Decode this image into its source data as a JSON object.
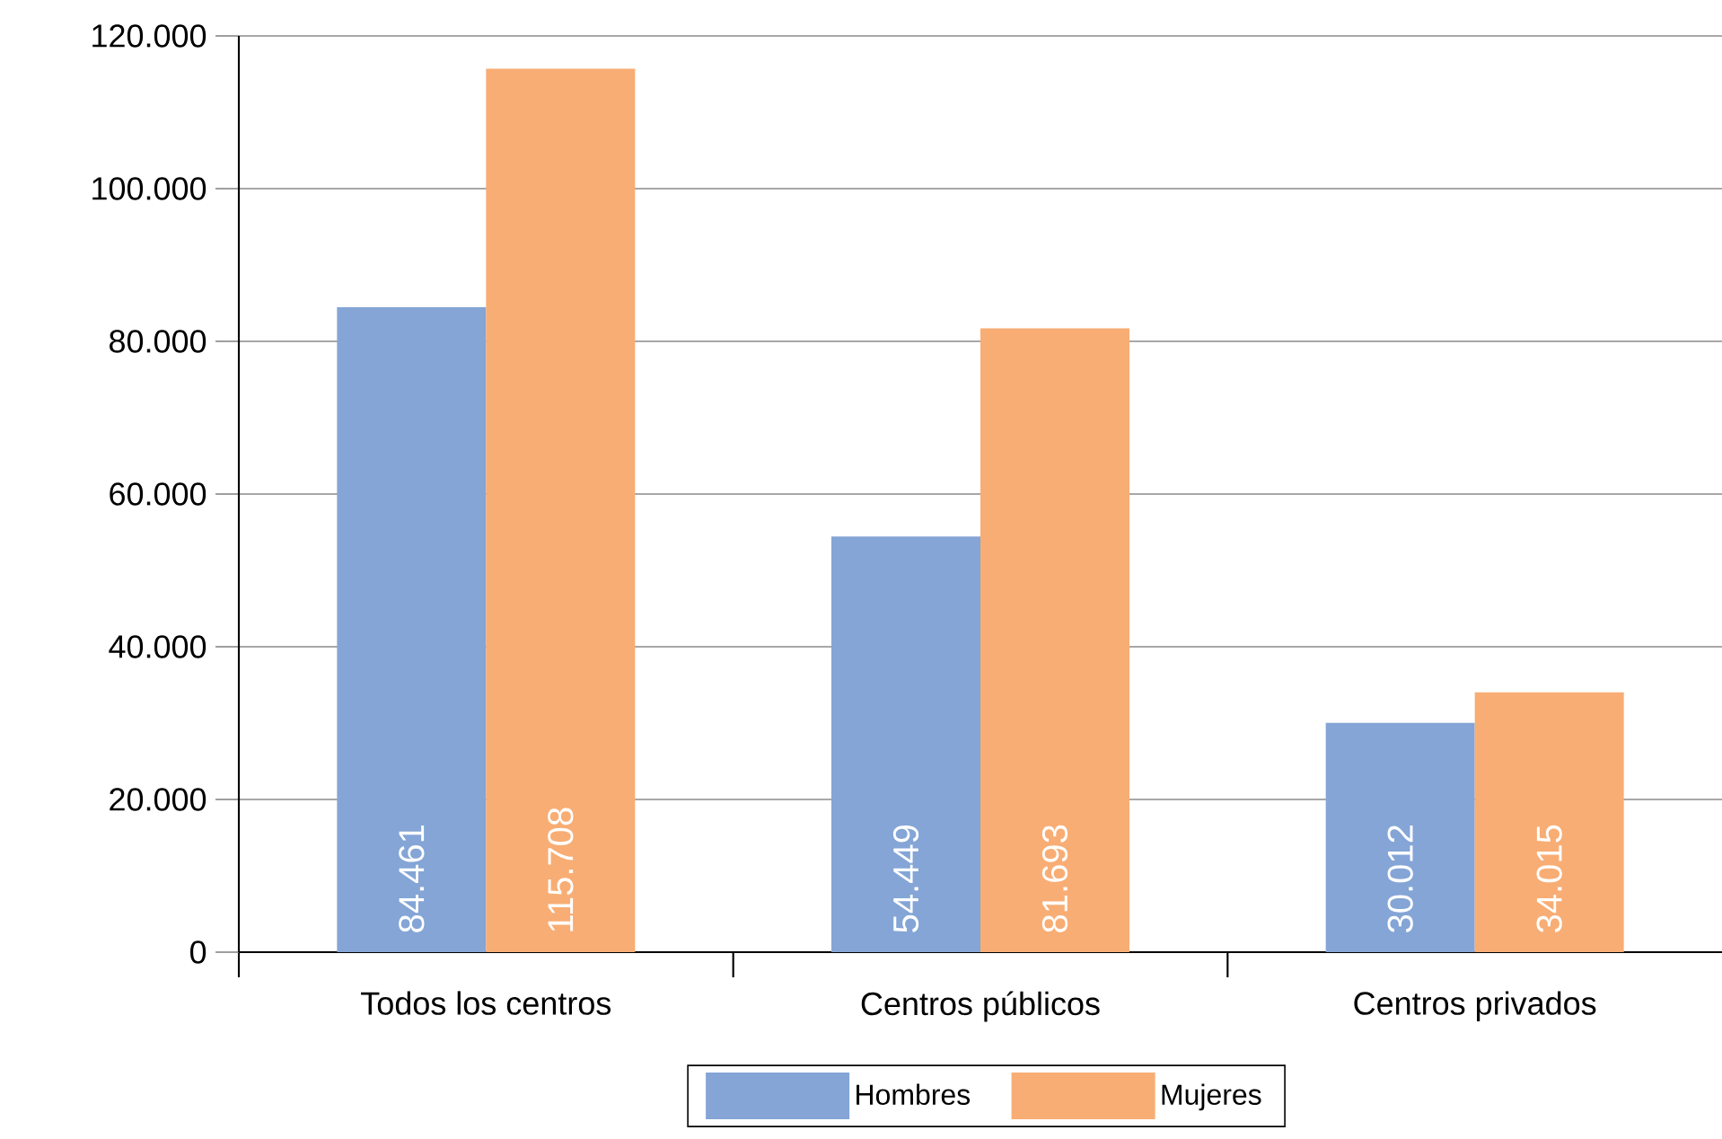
{
  "chart_data": {
    "type": "bar",
    "categories": [
      "Todos los centros",
      "Centros públicos",
      "Centros privados"
    ],
    "series": [
      {
        "name": "Hombres",
        "color": "#84a5d6",
        "values": [
          84461,
          54449,
          30012
        ],
        "value_labels": [
          "84.461",
          "54.449",
          "30.012"
        ]
      },
      {
        "name": "Mujeres",
        "color": "#f8ad74",
        "values": [
          115708,
          81693,
          34015
        ],
        "value_labels": [
          "115.708",
          "81.693",
          "34.015"
        ]
      }
    ],
    "ylim": [
      0,
      120000
    ],
    "yticks": [
      {
        "value": 0,
        "label": "0"
      },
      {
        "value": 20000,
        "label": "20.000"
      },
      {
        "value": 40000,
        "label": "40.000"
      },
      {
        "value": 60000,
        "label": "60.000"
      },
      {
        "value": 80000,
        "label": "80.000"
      },
      {
        "value": 100000,
        "label": "100.000"
      },
      {
        "value": 120000,
        "label": "120.000"
      }
    ],
    "grid": "y",
    "legend": "bottom"
  }
}
